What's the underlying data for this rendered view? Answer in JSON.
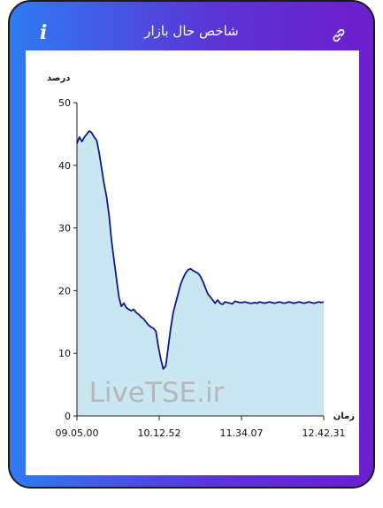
{
  "header": {
    "title": "شاخص حال بازار",
    "info_icon": "info-icon",
    "link_icon": "link-icon"
  },
  "colors": {
    "gradient_start": "#2f7bf2",
    "gradient_end": "#6d1fcd",
    "line": "#0d1b8a",
    "area": "#c9e6f1"
  },
  "chart_data": {
    "type": "area",
    "ylabel": "درصد",
    "xlabel": "زمان",
    "ylim": [
      0,
      50
    ],
    "yticks": [
      0,
      10,
      20,
      30,
      40,
      50
    ],
    "xtick_labels": [
      "09.05.00",
      "10.12.52",
      "11.34.07",
      "12.42.31"
    ],
    "watermark": "LiveTSE.ir",
    "grid": false,
    "series": [
      {
        "x": [
          0,
          1,
          2,
          3,
          4,
          5,
          6,
          7,
          8,
          9,
          10,
          11,
          12,
          13,
          14,
          15,
          16,
          17,
          18,
          19,
          20,
          21,
          22,
          23,
          24,
          25,
          26,
          27,
          28,
          29,
          30,
          31,
          32,
          33,
          34,
          35,
          36,
          37,
          38,
          39,
          40,
          41,
          42,
          43,
          44,
          45,
          46,
          47,
          48,
          49,
          50,
          51,
          52,
          53,
          54,
          55,
          56,
          57,
          58,
          59,
          60,
          61,
          62,
          63,
          64,
          65,
          66,
          67,
          68,
          69,
          70,
          71,
          72,
          73,
          74,
          75,
          76,
          77,
          78,
          79,
          80,
          81,
          82,
          83,
          84,
          85,
          86,
          87,
          88,
          89,
          90,
          91,
          92,
          93,
          94,
          95,
          96,
          97,
          98,
          99,
          100
        ],
        "values": [
          43.5,
          44.5,
          43.8,
          44.5,
          45,
          45.5,
          45.2,
          44.5,
          44,
          42,
          39.5,
          37,
          35,
          32,
          28,
          25,
          22,
          19,
          17.5,
          18,
          17.3,
          17,
          16.8,
          17,
          16.5,
          16.2,
          15.8,
          15.5,
          15,
          14.5,
          14.2,
          14,
          13.5,
          11,
          9,
          7.5,
          8,
          11,
          14,
          16.5,
          18,
          19.5,
          21,
          22,
          22.8,
          23.3,
          23.5,
          23.2,
          23,
          22.8,
          22.3,
          21.5,
          20.5,
          19.5,
          19,
          18.5,
          18,
          18.5,
          18,
          17.8,
          18.2,
          18.1,
          18,
          17.9,
          18.3,
          18.2,
          18.1,
          18.1,
          18.2,
          18.1,
          18,
          18,
          18.1,
          18,
          18.2,
          18.1,
          18,
          18.1,
          18.2,
          18.1,
          18,
          18.1,
          18.2,
          18.1,
          18,
          18.1,
          18.2,
          18.1,
          18,
          18.1,
          18.2,
          18.1,
          18,
          18.1,
          18.2,
          18.1,
          18,
          18.1,
          18.2,
          18.1,
          18.2
        ]
      }
    ]
  }
}
